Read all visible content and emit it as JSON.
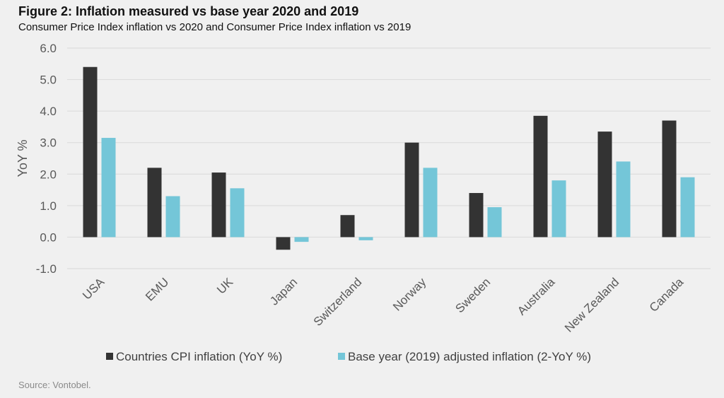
{
  "header": {
    "title": "Figure 2: Inflation measured vs base year 2020 and 2019",
    "subtitle": "Consumer Price Index inflation vs 2020 and Consumer Price Index inflation vs 2019"
  },
  "footer": {
    "source": "Source: Vontobel."
  },
  "colors": {
    "series1": "#333333",
    "series2": "#74c6d8",
    "grid": "#d9d9d9",
    "text": "#595959"
  },
  "chart_data": {
    "type": "bar",
    "title": "",
    "xlabel": "",
    "ylabel": "YoY %",
    "ylim": [
      -1.0,
      6.0
    ],
    "yticks": [
      "6.0",
      "5.0",
      "4.0",
      "3.0",
      "2.0",
      "1.0",
      "0.0",
      "-1.0"
    ],
    "ytick_values": [
      6,
      5,
      4,
      3,
      2,
      1,
      0,
      -1
    ],
    "grid": true,
    "legend_position": "bottom",
    "categories": [
      "USA",
      "EMU",
      "UK",
      "Japan",
      "Switzerland",
      "Norway",
      "Sweden",
      "Australia",
      "New Zealand",
      "Canada"
    ],
    "series": [
      {
        "name": "Countries CPI inflation (YoY %)",
        "values": [
          5.4,
          2.2,
          2.05,
          -0.4,
          0.7,
          3.0,
          1.4,
          3.85,
          3.35,
          3.7
        ]
      },
      {
        "name": "Base year (2019) adjusted inflation (2-YoY %)",
        "values": [
          3.15,
          1.3,
          1.55,
          -0.15,
          -0.1,
          2.2,
          0.95,
          1.8,
          2.4,
          1.9
        ]
      }
    ]
  }
}
